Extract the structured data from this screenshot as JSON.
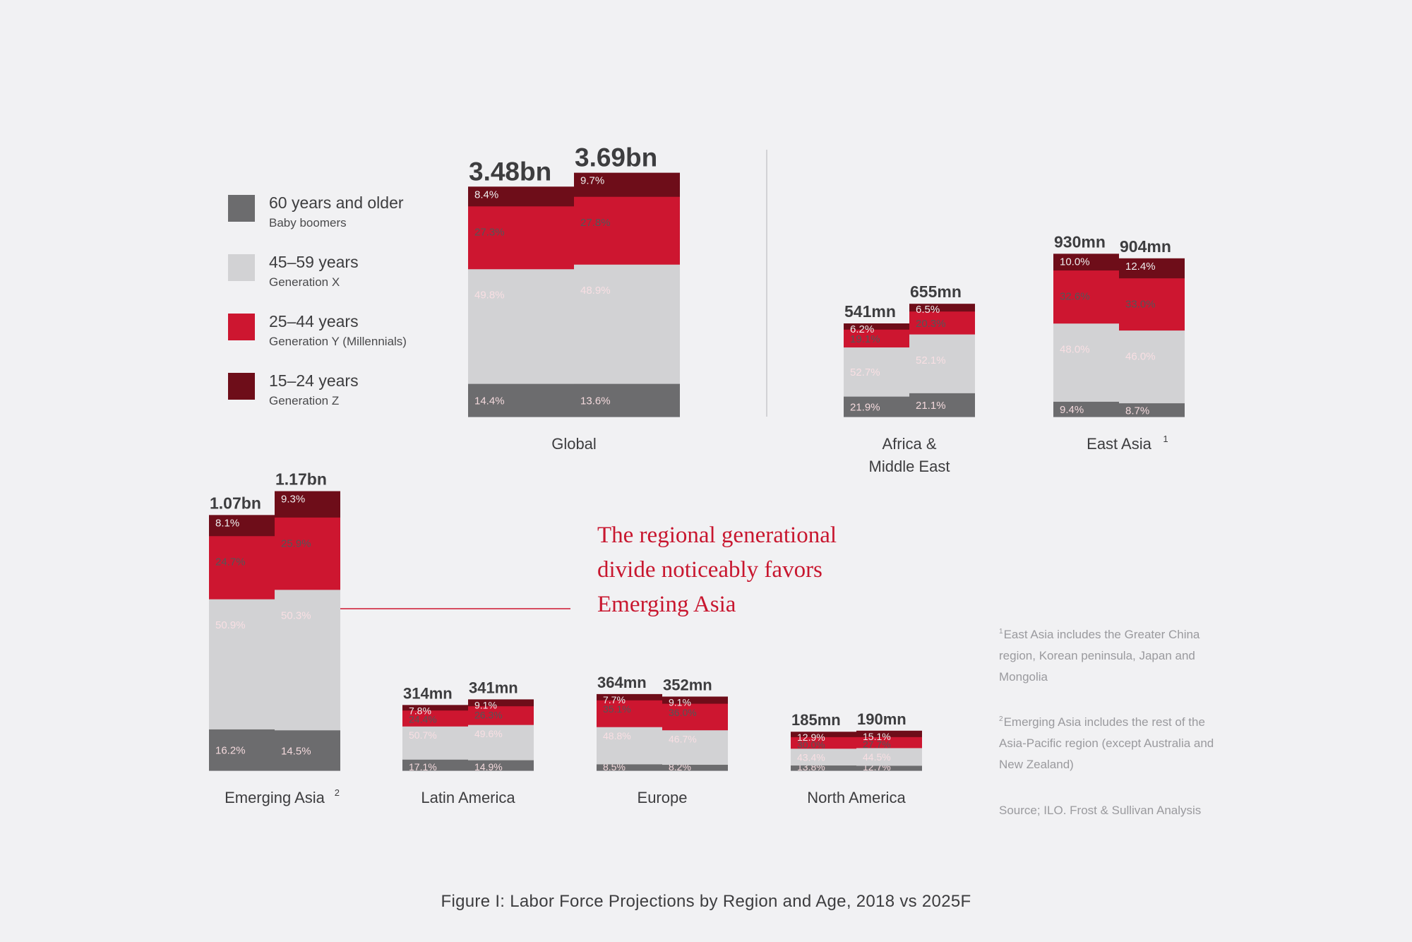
{
  "legend": [
    {
      "label": "60 years and older",
      "sub": "Baby boomers",
      "color": "#6c6c6e"
    },
    {
      "label": "45–59 years",
      "sub": "Generation X",
      "color": "#d2d2d4"
    },
    {
      "label": "25–44 years",
      "sub": "Generation Y (Millennials)",
      "color": "#cd1630"
    },
    {
      "label": "15–24 years",
      "sub": "Generation Z",
      "color": "#6e0d19"
    }
  ],
  "chart_data": [
    {
      "type": "bar",
      "stacked": true,
      "region": "Global",
      "footnote_ref": "",
      "bars": [
        {
          "total_label": "3.48bn",
          "total": 3.48,
          "segments": [
            14.4,
            49.8,
            27.3,
            8.4
          ],
          "labels": [
            "14.4%",
            "49.8%",
            "27.3%",
            "8.4%"
          ]
        },
        {
          "total_label": "3.69bn",
          "total": 3.69,
          "segments": [
            13.6,
            48.9,
            27.8,
            9.7
          ],
          "labels": [
            "13.6%",
            "48.9%",
            "27.8%",
            "9.7%"
          ]
        }
      ]
    },
    {
      "type": "bar",
      "stacked": true,
      "region": "Africa & Middle East",
      "footnote_ref": "",
      "bars": [
        {
          "total_label": "541mn",
          "total": 0.541,
          "segments": [
            21.9,
            52.7,
            19.1,
            6.2
          ],
          "labels": [
            "21.9%",
            "52.7%",
            "19.1%",
            "6.2%"
          ]
        },
        {
          "total_label": "655mn",
          "total": 0.655,
          "segments": [
            21.1,
            52.1,
            20.3,
            6.5
          ],
          "labels": [
            "21.1%",
            "52.1%",
            "20.3%",
            "6.5%"
          ]
        }
      ]
    },
    {
      "type": "bar",
      "stacked": true,
      "region": "East Asia",
      "footnote_ref": "1",
      "bars": [
        {
          "total_label": "930mn",
          "total": 0.93,
          "segments": [
            9.4,
            48.0,
            32.6,
            10.0
          ],
          "labels": [
            "9.4%",
            "48.0%",
            "32.6%",
            "10.0%"
          ]
        },
        {
          "total_label": "904mn",
          "total": 0.904,
          "segments": [
            8.7,
            46.0,
            33.0,
            12.4
          ],
          "labels": [
            "8.7%",
            "46.0%",
            "33.0%",
            "12.4%"
          ]
        }
      ]
    },
    {
      "type": "bar",
      "stacked": true,
      "region": "Emerging Asia",
      "footnote_ref": "2",
      "bars": [
        {
          "total_label": "1.07bn",
          "total": 1.07,
          "segments": [
            16.2,
            50.9,
            24.7,
            8.1
          ],
          "labels": [
            "16.2%",
            "50.9%",
            "24.7%",
            "8.1%"
          ]
        },
        {
          "total_label": "1.17bn",
          "total": 1.17,
          "segments": [
            14.5,
            50.3,
            25.9,
            9.3
          ],
          "labels": [
            "14.5%",
            "50.3%",
            "25.9%",
            "9.3%"
          ]
        }
      ]
    },
    {
      "type": "bar",
      "stacked": true,
      "region": "Latin America",
      "footnote_ref": "",
      "bars": [
        {
          "total_label": "314mn",
          "total": 0.314,
          "segments": [
            17.1,
            50.7,
            24.4,
            7.8
          ],
          "labels": [
            "17.1%",
            "50.7%",
            "24.4%",
            "7.8%"
          ]
        },
        {
          "total_label": "341mn",
          "total": 0.341,
          "segments": [
            14.9,
            49.6,
            26.3,
            9.1
          ],
          "labels": [
            "14.9%",
            "49.6%",
            "26.3%",
            "9.1%"
          ]
        }
      ]
    },
    {
      "type": "bar",
      "stacked": true,
      "region": "Europe",
      "footnote_ref": "",
      "bars": [
        {
          "total_label": "364mn",
          "total": 0.364,
          "segments": [
            8.5,
            48.8,
            35.1,
            7.7
          ],
          "labels": [
            "8.5%",
            "48.8%",
            "35.1%",
            "7.7%"
          ]
        },
        {
          "total_label": "352mn",
          "total": 0.352,
          "segments": [
            8.2,
            46.7,
            36.0,
            9.1
          ],
          "labels": [
            "8.2%",
            "46.7%",
            "36.0%",
            "9.1%"
          ]
        }
      ]
    },
    {
      "type": "bar",
      "stacked": true,
      "region": "North America",
      "footnote_ref": "",
      "bars": [
        {
          "total_label": "185mn",
          "total": 0.185,
          "segments": [
            13.8,
            43.4,
            30.0,
            12.9
          ],
          "labels": [
            "13.8%",
            "43.4%",
            "30.0%",
            "12.9%"
          ]
        },
        {
          "total_label": "190mn",
          "total": 0.19,
          "segments": [
            12.7,
            44.5,
            27.7,
            15.1
          ],
          "labels": [
            "12.7%",
            "44.5%",
            "27.7%",
            "15.1%"
          ]
        }
      ]
    }
  ],
  "callout": {
    "lines": [
      "The regional generational",
      "divide noticeably favors",
      "Emerging Asia"
    ]
  },
  "footnotes": {
    "note1_mark": "1",
    "note1": "East Asia includes the Greater China region, Korean peninsula, Japan and Mongolia",
    "note2_mark": "2",
    "note2": "Emerging Asia includes the rest of the Asia-Pacific region (except Australia and New Zealand)"
  },
  "source": "Source; ILO. Frost & Sullivan Analysis",
  "caption": "Figure I: Labor Force Projections by Region and Age, 2018 vs 2025F"
}
